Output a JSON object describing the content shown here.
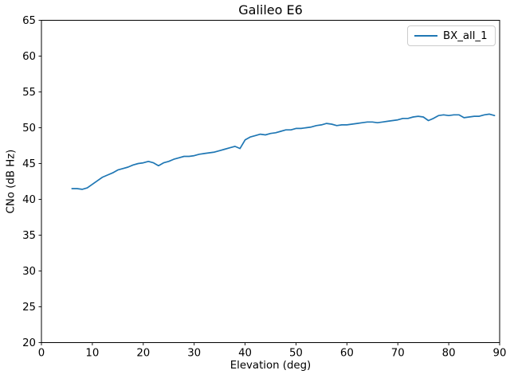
{
  "chart_data": {
    "type": "line",
    "title": "Galileo E6",
    "xlabel": "Elevation (deg)",
    "ylabel": "CNo (dB Hz)",
    "xlim": [
      0,
      90
    ],
    "ylim": [
      20,
      65
    ],
    "xticks": [
      0,
      10,
      20,
      30,
      40,
      50,
      60,
      70,
      80,
      90
    ],
    "yticks": [
      20,
      25,
      30,
      35,
      40,
      45,
      50,
      55,
      60,
      65
    ],
    "grid": "off",
    "legend_position": "upper right",
    "x": [
      6,
      7,
      8,
      9,
      10,
      11,
      12,
      13,
      14,
      15,
      16,
      17,
      18,
      19,
      20,
      21,
      22,
      23,
      24,
      25,
      26,
      27,
      28,
      29,
      30,
      31,
      32,
      33,
      34,
      35,
      36,
      37,
      38,
      39,
      40,
      41,
      42,
      43,
      44,
      45,
      46,
      47,
      48,
      49,
      50,
      51,
      52,
      53,
      54,
      55,
      56,
      57,
      58,
      59,
      60,
      61,
      62,
      63,
      64,
      65,
      66,
      67,
      68,
      69,
      70,
      71,
      72,
      73,
      74,
      75,
      76,
      77,
      78,
      79,
      80,
      81,
      82,
      83,
      84,
      85,
      86,
      87,
      88,
      89
    ],
    "series": [
      {
        "name": "BX_all_1",
        "color": "#1f77b4",
        "values": [
          41.5,
          41.5,
          41.4,
          41.6,
          42.1,
          42.6,
          43.1,
          43.4,
          43.7,
          44.1,
          44.3,
          44.5,
          44.8,
          45.0,
          45.1,
          45.3,
          45.1,
          44.7,
          45.1,
          45.3,
          45.6,
          45.8,
          46.0,
          46.0,
          46.1,
          46.3,
          46.4,
          46.5,
          46.6,
          46.8,
          47.0,
          47.2,
          47.4,
          47.1,
          48.3,
          48.7,
          48.9,
          49.1,
          49.0,
          49.2,
          49.3,
          49.5,
          49.7,
          49.7,
          49.9,
          49.9,
          50.0,
          50.1,
          50.3,
          50.4,
          50.6,
          50.5,
          50.3,
          50.4,
          50.4,
          50.5,
          50.6,
          50.7,
          50.8,
          50.8,
          50.7,
          50.8,
          50.9,
          51.0,
          51.1,
          51.3,
          51.3,
          51.5,
          51.6,
          51.5,
          51.0,
          51.3,
          51.7,
          51.8,
          51.7,
          51.8,
          51.8,
          51.4,
          51.5,
          51.6,
          51.6,
          51.8,
          51.9,
          51.7
        ]
      }
    ],
    "axis_color": "#000000",
    "tick_label_color": "#000000"
  }
}
